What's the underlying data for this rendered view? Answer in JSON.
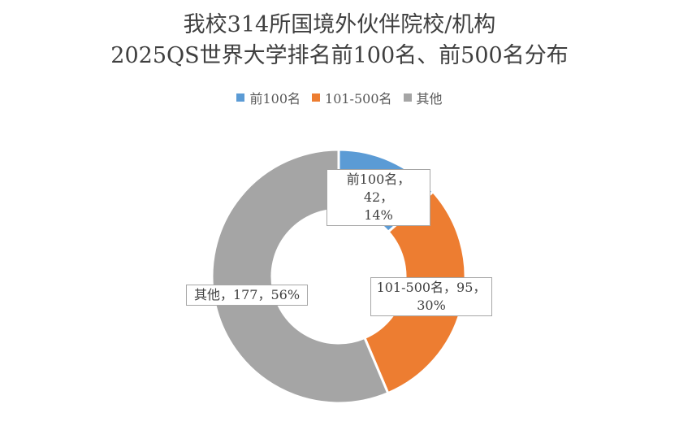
{
  "chart_data": {
    "type": "pie",
    "title": [
      "我校314所国境外伙伴院校/机构",
      "2025QS世界大学排名前100名、前500名分布"
    ],
    "series": [
      {
        "name": "前100名",
        "value": 42,
        "percent": "14%",
        "color": "#5b9bd5"
      },
      {
        "name": "101-500名",
        "value": 95,
        "percent": "30%",
        "color": "#ed7d31"
      },
      {
        "name": "其他",
        "value": 177,
        "percent": "56%",
        "color": "#a5a5a5"
      }
    ],
    "data_labels": [
      {
        "line1": "前100名，42，",
        "line2": "14%"
      },
      {
        "line1": "101-500名，95，",
        "line2": "30%"
      },
      {
        "line1": "其他，177，56%",
        "line2": ""
      }
    ],
    "legend_position": "top"
  }
}
